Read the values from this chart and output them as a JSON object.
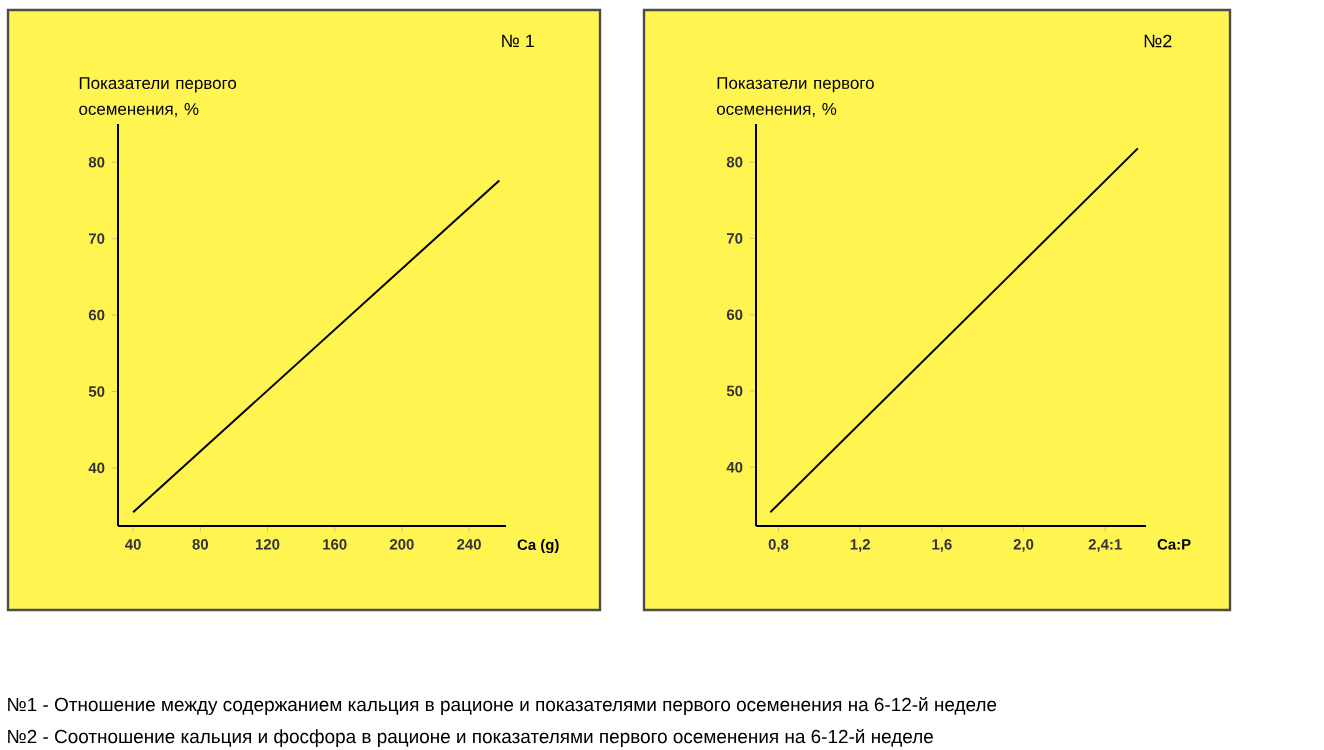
{
  "chart_data": [
    {
      "type": "line",
      "title": "№ 1",
      "xlabel": "Ca (g)",
      "ylabel": "Показатели первого осеменения, %",
      "x": [
        40,
        258
      ],
      "values": [
        34.2,
        77.6
      ],
      "color": "#000000",
      "xlim": [
        31,
        262
      ],
      "ylim": [
        32.4,
        85
      ],
      "xticks": [
        40,
        80,
        120,
        160,
        200,
        240
      ],
      "yticks": [
        40,
        50,
        60,
        70,
        80
      ],
      "grid": false,
      "marker": "none",
      "line_style": "solid",
      "annotations": [
        "№1 - Отношение между содержанием кальция в рационе и показателями первого осеменения на 6-12-й неделе"
      ]
    },
    {
      "type": "line",
      "title": "№2",
      "xlabel": "Ca:P",
      "ylabel": "Показатели первого осеменения, %",
      "x": [
        0.76,
        2.56
      ],
      "values": [
        34.1,
        81.8
      ],
      "color": "#000000",
      "xlim": [
        0.69,
        2.6
      ],
      "ylim": [
        32.3,
        85
      ],
      "xticks": [
        {
          "value": 0.8,
          "label": "0,8"
        },
        {
          "value": 1.2,
          "label": "1,2"
        },
        {
          "value": 1.6,
          "label": "1,6"
        },
        {
          "value": 2.0,
          "label": "2,0"
        },
        {
          "value": 2.4,
          "label": "2,4:1"
        }
      ],
      "yticks": [
        40,
        50,
        60,
        70,
        80
      ],
      "grid": false,
      "marker": "none",
      "line_style": "solid",
      "annotations": [
        "№2 - Соотношение кальция и фосфора в рационе и показателями первого осеменения на 6-12-й неделе"
      ]
    }
  ]
}
